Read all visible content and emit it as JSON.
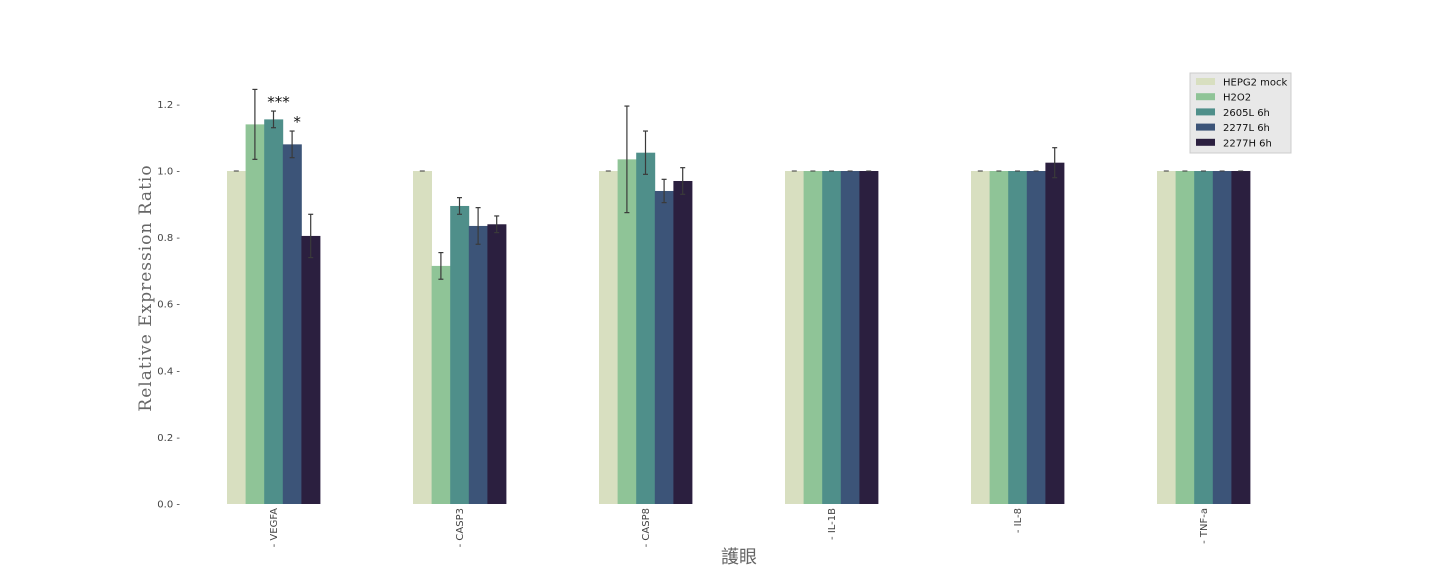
{
  "chart_data": {
    "type": "bar",
    "title": "",
    "xlabel": "護眼",
    "ylabel": "Relative Expression Ratio",
    "ylim": [
      0,
      1.3
    ],
    "yticks": [
      "0.0",
      "0.2",
      "0.4",
      "0.6",
      "0.8",
      "1.0",
      "1.2"
    ],
    "grid": false,
    "legend_position": "top-right",
    "categories": [
      "VEGFA",
      "CASP3",
      "CASP8",
      "IL-1B",
      "IL-8",
      "TNF-a"
    ],
    "series": [
      {
        "name": "HEPG2 mock",
        "color": "#d8dfc0",
        "values": [
          1.0,
          1.0,
          1.0,
          1.0,
          1.0,
          1.0
        ],
        "errors": [
          0,
          0,
          0,
          0,
          0,
          0
        ]
      },
      {
        "name": "H2O2",
        "color": "#8fc497",
        "values": [
          1.14,
          0.715,
          1.035,
          1.0,
          1.0,
          1.0
        ],
        "errors": [
          0.105,
          0.04,
          0.16,
          0,
          0,
          0
        ]
      },
      {
        "name": "2605L 6h",
        "color": "#4f8f8a",
        "values": [
          1.155,
          0.895,
          1.055,
          1.0,
          1.0,
          1.0
        ],
        "errors": [
          0.025,
          0.025,
          0.065,
          0,
          0,
          0
        ]
      },
      {
        "name": "2277L 6h",
        "color": "#3c5478",
        "values": [
          1.08,
          0.835,
          0.94,
          1.0,
          1.0,
          1.0
        ],
        "errors": [
          0.04,
          0.055,
          0.035,
          0,
          0,
          0
        ]
      },
      {
        "name": "2277H 6h",
        "color": "#2b1f3f",
        "values": [
          0.805,
          0.84,
          0.97,
          1.0,
          1.025,
          1.0
        ],
        "errors": [
          0.065,
          0.025,
          0.04,
          0,
          0.045,
          0
        ]
      }
    ],
    "annotations": [
      {
        "text": "***",
        "category": "VEGFA",
        "series": "2605L 6h"
      },
      {
        "text": "*",
        "category": "VEGFA",
        "series": "2277L 6h"
      }
    ]
  }
}
